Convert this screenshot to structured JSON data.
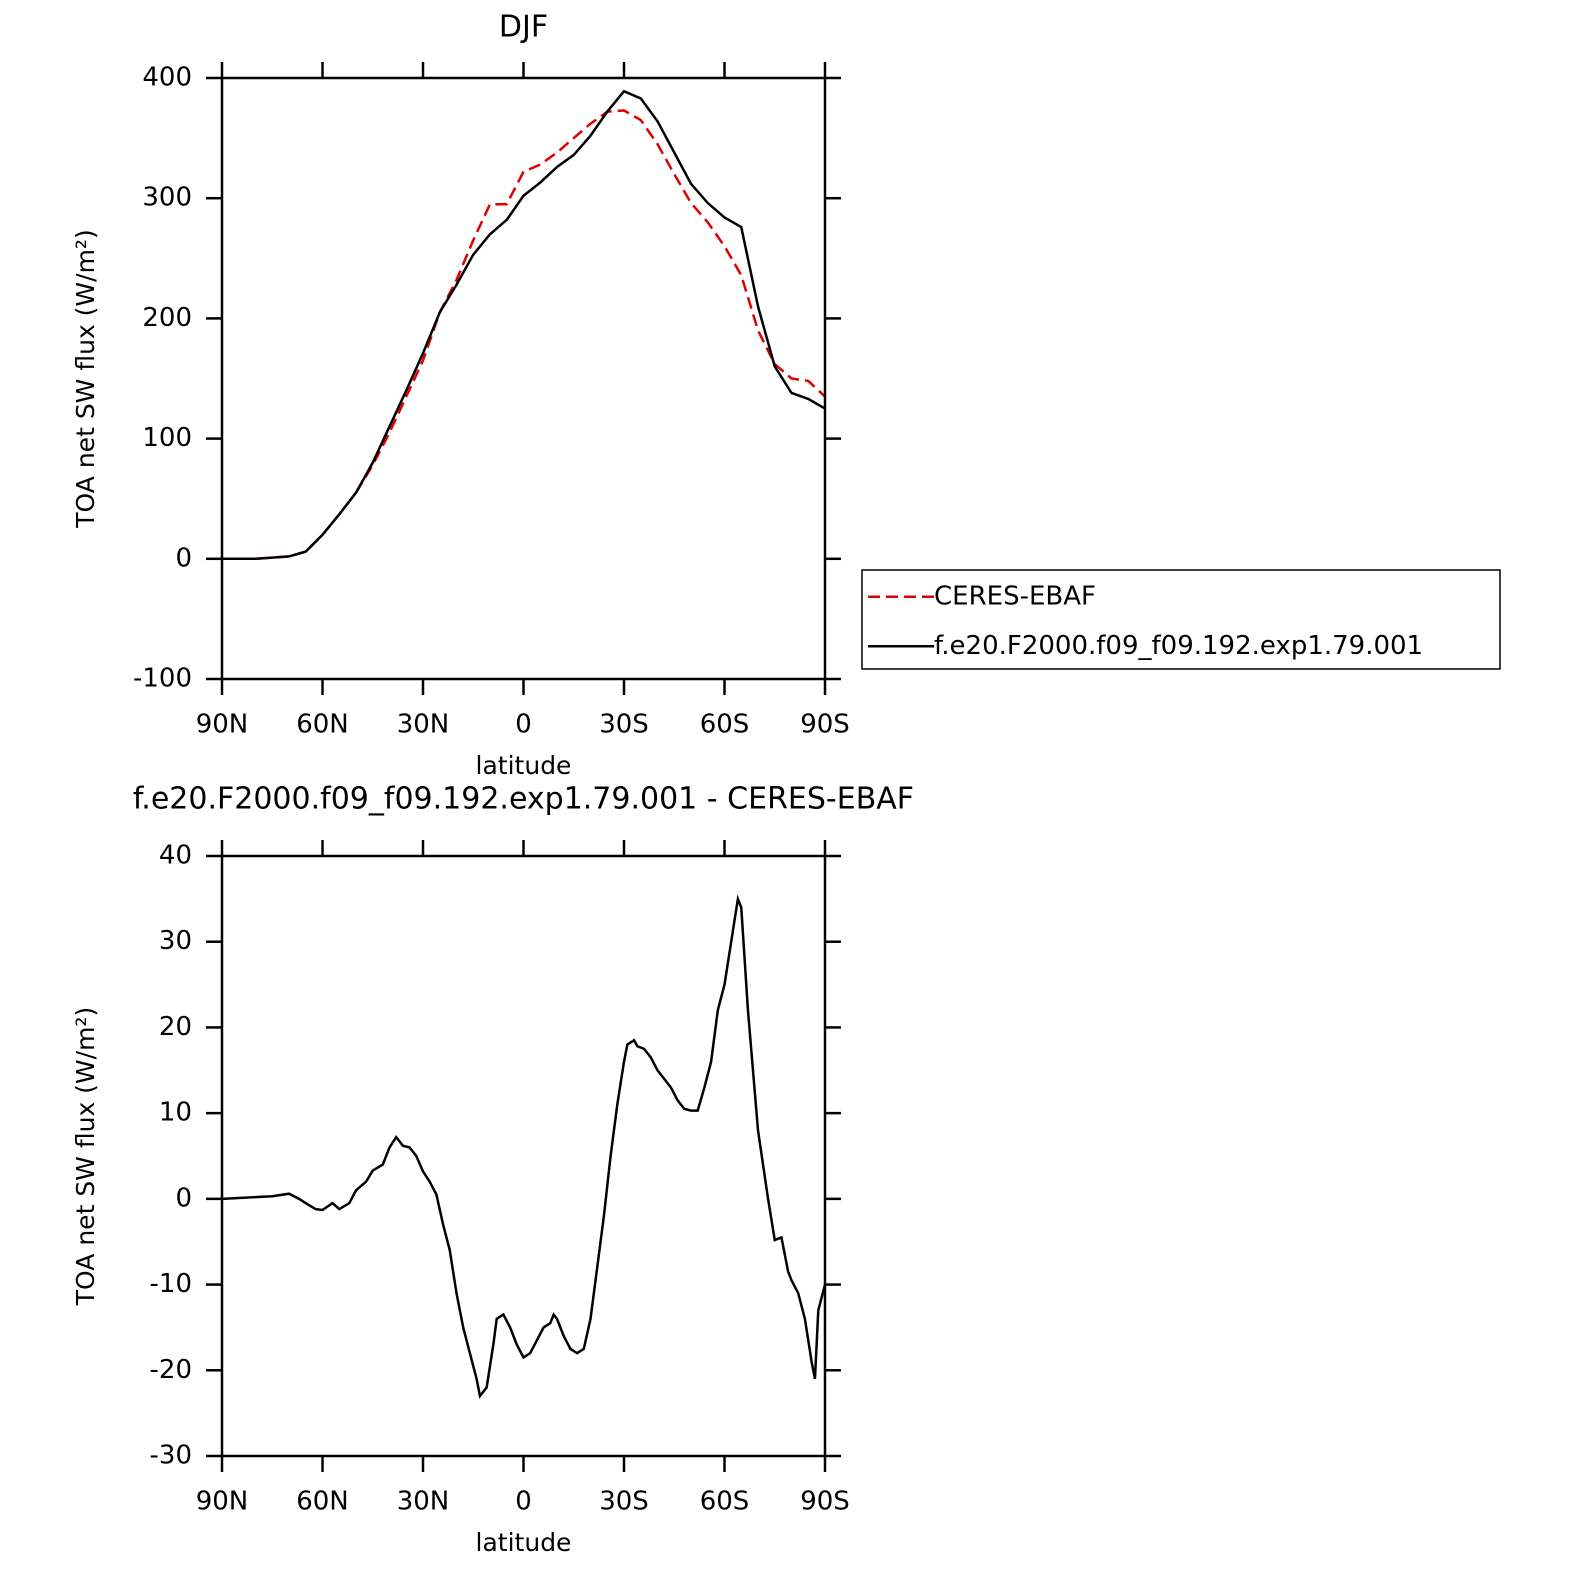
{
  "chart_data": [
    {
      "type": "line",
      "title": "DJF",
      "xlabel": "latitude",
      "ylabel": "TOA net SW flux (W/m²)",
      "x": [
        90,
        85,
        80,
        75,
        70,
        65,
        60,
        55,
        50,
        45,
        40,
        35,
        30,
        25,
        20,
        15,
        10,
        5,
        0,
        -5,
        -10,
        -15,
        -20,
        -25,
        -30,
        -35,
        -40,
        -45,
        -50,
        -55,
        -60,
        -65,
        -70,
        -75,
        -80,
        -85,
        -90
      ],
      "series": [
        {
          "name": "CERES-EBAF",
          "color": "#e00000",
          "linestyle": "dashed",
          "values": [
            0,
            0,
            0,
            1,
            2,
            6,
            20,
            37,
            55,
            78,
            105,
            135,
            165,
            205,
            232,
            265,
            295,
            295,
            322,
            328,
            338,
            350,
            362,
            372,
            373,
            365,
            345,
            320,
            296,
            280,
            260,
            236,
            190,
            162,
            150,
            148,
            135
          ]
        },
        {
          "name": "f.e20.F2000.f09_f09.192.exp1.79.001",
          "color": "#000000",
          "linestyle": "solid",
          "values": [
            0,
            0,
            0,
            1,
            2,
            6,
            20,
            37,
            55,
            80,
            110,
            140,
            171,
            205,
            228,
            253,
            270,
            282,
            302,
            313,
            326,
            336,
            352,
            372,
            389,
            383,
            364,
            338,
            312,
            296,
            284,
            276,
            210,
            160,
            138,
            133,
            125
          ]
        }
      ],
      "xlim": [
        90,
        -90
      ],
      "xticks": [
        {
          "value": 90,
          "label": "90N"
        },
        {
          "value": 60,
          "label": "60N"
        },
        {
          "value": 30,
          "label": "30N"
        },
        0,
        {
          "value": -30,
          "label": "30S"
        },
        {
          "value": -60,
          "label": "60S"
        },
        {
          "value": -90,
          "label": "90S"
        }
      ],
      "ylim": [
        -100,
        400
      ],
      "yticks": [
        -100,
        0,
        100,
        200,
        300,
        400
      ],
      "legend": "right"
    },
    {
      "type": "line",
      "title": "f.e20.F2000.f09_f09.192.exp1.79.001 - CERES-EBAF",
      "xlabel": "latitude",
      "ylabel": "TOA net SW flux (W/m²)",
      "x": [
        90,
        85,
        80,
        75,
        70,
        67,
        65,
        62,
        60,
        57,
        55,
        52,
        50,
        47,
        45,
        42,
        40,
        38,
        36,
        34,
        32,
        30,
        28,
        26,
        24,
        22,
        20,
        18,
        16,
        14,
        13,
        11,
        9,
        8,
        6,
        4,
        2,
        0,
        -2,
        -4,
        -6,
        -8,
        -9,
        -10,
        -12,
        -14,
        -16,
        -18,
        -20,
        -22,
        -24,
        -26,
        -28,
        -30,
        -31,
        -33,
        -34,
        -36,
        -38,
        -40,
        -42,
        -44,
        -46,
        -48,
        -50,
        -52,
        -54,
        -56,
        -58,
        -60,
        -62,
        -64,
        -65,
        -67,
        -70,
        -73,
        -75,
        -77,
        -79,
        -80,
        -82,
        -84,
        -86,
        -87,
        -88,
        -90
      ],
      "series": [
        {
          "name": "f.e20.F2000.f09_f09.192.exp1.79.001 - CERES-EBAF",
          "color": "#000000",
          "linestyle": "solid",
          "values": [
            0,
            0.1,
            0.2,
            0.3,
            0.6,
            0,
            -0.5,
            -1.2,
            -1.3,
            -0.5,
            -1.2,
            -0.5,
            1,
            2,
            3.3,
            4,
            6,
            7.2,
            6.2,
            6,
            5,
            3.2,
            2,
            0.5,
            -3,
            -6,
            -11,
            -15,
            -18,
            -21,
            -23,
            -22,
            -17,
            -14,
            -13.5,
            -15,
            -17,
            -18.5,
            -18,
            -16.5,
            -15,
            -14.5,
            -13.5,
            -14,
            -16,
            -17.5,
            -18,
            -17.5,
            -14,
            -8,
            -2,
            5,
            11,
            16,
            18,
            18.5,
            17.8,
            17.5,
            16.5,
            15,
            14,
            13,
            11.5,
            10.5,
            10.3,
            10.3,
            13,
            16,
            22,
            25,
            30,
            35,
            34,
            22,
            8,
            0,
            -4.8,
            -4.5,
            -8.5,
            -9.5,
            -11,
            -14,
            -19,
            -21,
            -13,
            -10
          ]
        }
      ],
      "xlim": [
        90,
        -90
      ],
      "xticks": [
        {
          "value": 90,
          "label": "90N"
        },
        {
          "value": 60,
          "label": "60N"
        },
        {
          "value": 30,
          "label": "30N"
        },
        0,
        {
          "value": -30,
          "label": "30S"
        },
        {
          "value": -60,
          "label": "60S"
        },
        {
          "value": -90,
          "label": "90S"
        }
      ],
      "ylim": [
        -30,
        40
      ],
      "yticks": [
        -30,
        -20,
        -10,
        0,
        10,
        20,
        30,
        40
      ]
    }
  ]
}
